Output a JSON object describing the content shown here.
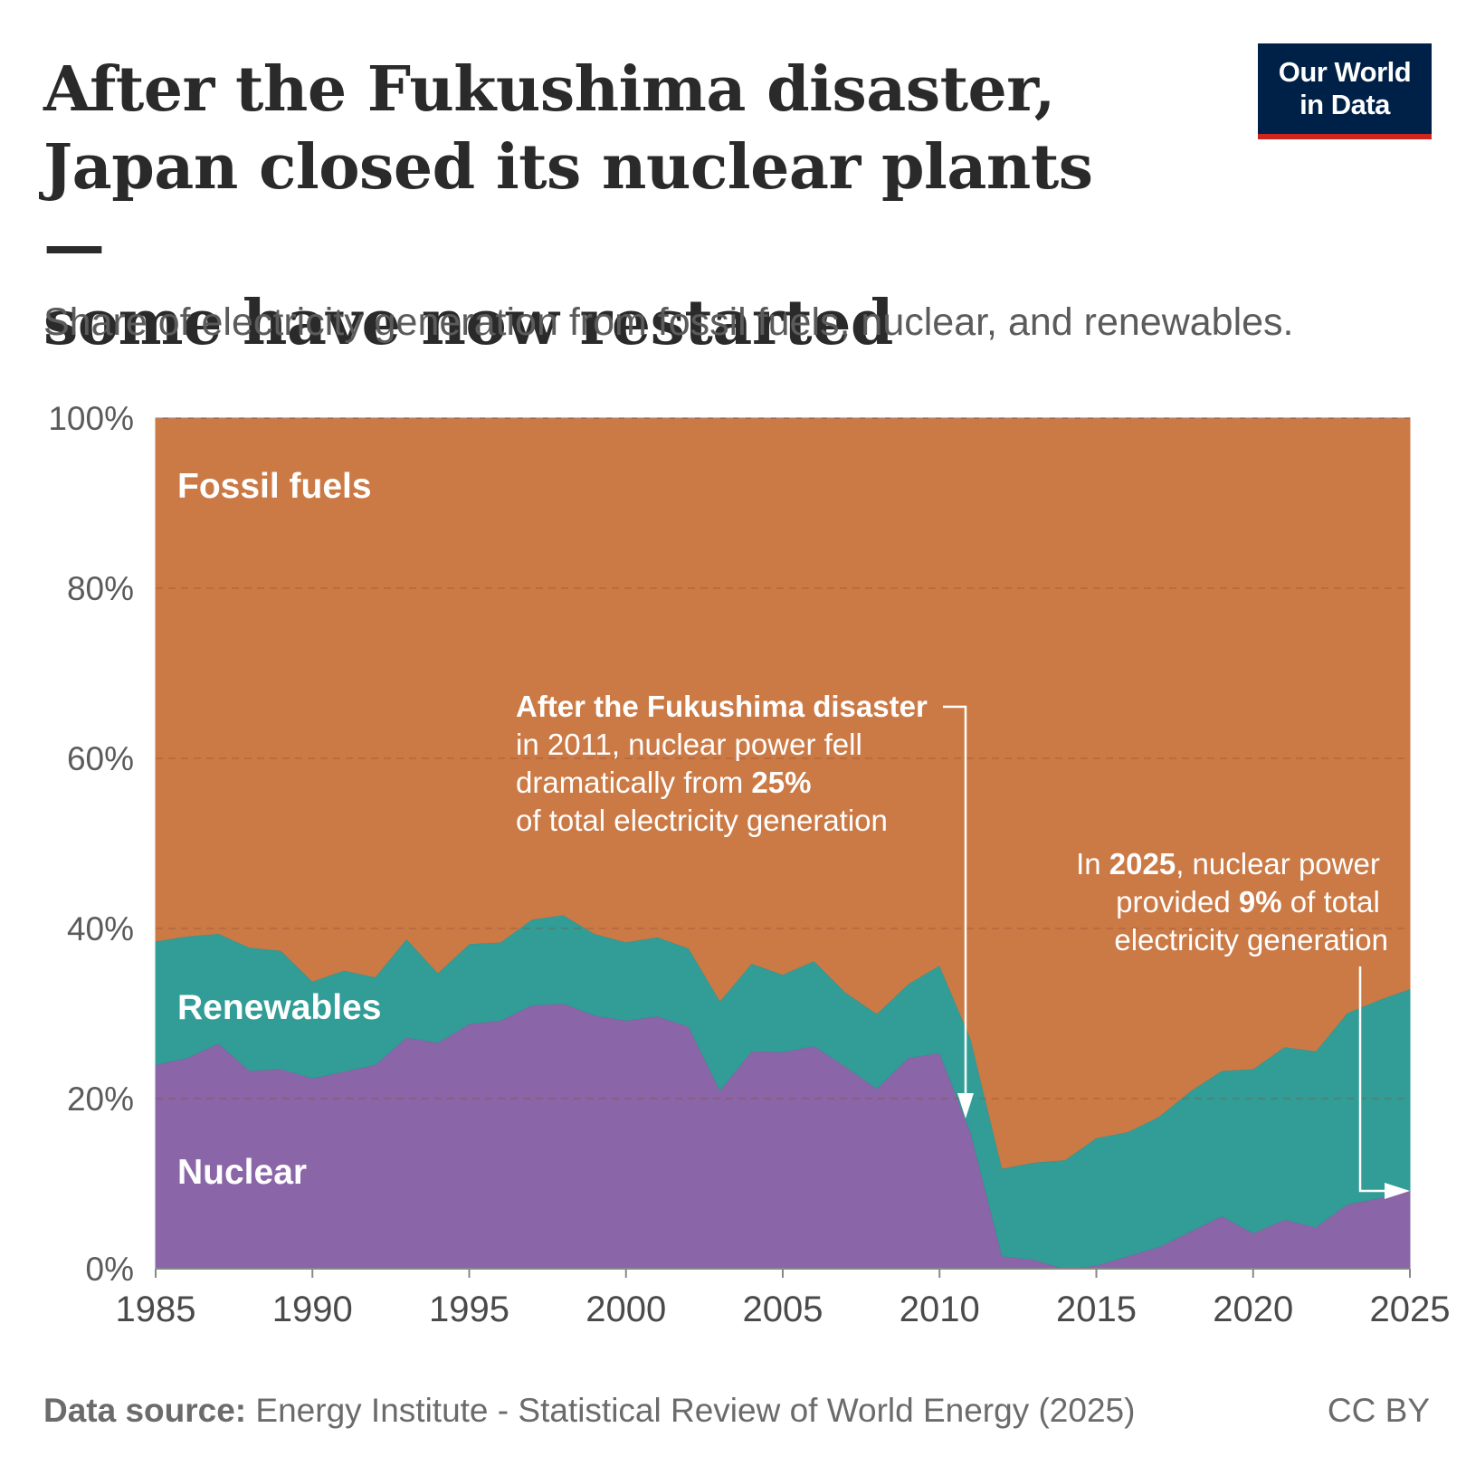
{
  "header": {
    "title_lines": [
      "After the Fukushima disaster,",
      "Japan closed its nuclear plants —",
      "some have now restarted"
    ],
    "subtitle": "Share of electricity generation from fossil fuels, nuclear, and renewables."
  },
  "logo": {
    "line1": "Our World",
    "line2": "in Data",
    "bg_color": "#002147",
    "accent_color": "#ce261e"
  },
  "footer": {
    "source_label": "Data source:",
    "source_text": "Energy Institute - Statistical Review of World Energy (2025)",
    "license": "CC BY"
  },
  "chart_data": {
    "type": "area",
    "stacked": true,
    "x": [
      1985,
      1986,
      1987,
      1988,
      1989,
      1990,
      1991,
      1992,
      1993,
      1994,
      1995,
      1996,
      1997,
      1998,
      1999,
      2000,
      2001,
      2002,
      2003,
      2004,
      2005,
      2006,
      2007,
      2008,
      2009,
      2010,
      2011,
      2012,
      2013,
      2014,
      2015,
      2016,
      2017,
      2018,
      2019,
      2020,
      2021,
      2022,
      2023,
      2024,
      2025
    ],
    "series": [
      {
        "name": "Nuclear",
        "color": "#8a66a8",
        "values": [
          24,
          24.8,
          26.5,
          23.3,
          23.5,
          22.4,
          23.2,
          24,
          27.2,
          26.6,
          28.8,
          29.2,
          31,
          31.2,
          29.8,
          29.2,
          29.7,
          28.5,
          21,
          25.6,
          25.5,
          26.2,
          23.8,
          21.2,
          24.8,
          25.4,
          16,
          1.5,
          1.1,
          0,
          0.4,
          1.5,
          2.6,
          4.4,
          6.2,
          4.2,
          5.8,
          4.9,
          7.6,
          8.3,
          9.2
        ]
      },
      {
        "name": "Renewables",
        "color": "#319d96",
        "values": [
          14.5,
          14.3,
          12.9,
          14.5,
          13.9,
          11.4,
          11.9,
          10.3,
          11.6,
          8.2,
          9.4,
          9.2,
          10.1,
          10.4,
          9.6,
          9.2,
          9.3,
          9.2,
          10.5,
          10.3,
          9.1,
          10,
          8.7,
          8.8,
          8.7,
          10.3,
          11,
          10.3,
          11.4,
          12.8,
          15,
          14.6,
          15.3,
          16.5,
          17.1,
          19.3,
          20.3,
          20.7,
          22.5,
          23.3,
          23.7
        ]
      },
      {
        "name": "Fossil fuels",
        "color": "#cb7a46",
        "values": [
          61.5,
          60.9,
          60.6,
          62.2,
          62.6,
          66.2,
          64.9,
          65.7,
          61.2,
          65.2,
          61.8,
          61.6,
          58.9,
          58.4,
          60.6,
          61.6,
          61,
          62.3,
          68.5,
          64.1,
          65.4,
          63.8,
          67.5,
          70,
          66.5,
          64.3,
          73,
          88.2,
          87.5,
          87.2,
          84.6,
          83.9,
          82.1,
          79.1,
          76.7,
          76.5,
          73.9,
          74.4,
          69.9,
          68.4,
          67.1
        ]
      }
    ],
    "series_labels": [
      "Fossil fuels",
      "Renewables",
      "Nuclear"
    ],
    "y_ticks": [
      "0%",
      "20%",
      "40%",
      "60%",
      "80%",
      "100%"
    ],
    "y_tick_values": [
      0,
      20,
      40,
      60,
      80,
      100
    ],
    "x_ticks": [
      "1985",
      "1990",
      "1995",
      "2000",
      "2005",
      "2010",
      "2015",
      "2020",
      "2025"
    ],
    "x_tick_values": [
      1985,
      1990,
      1995,
      2000,
      2005,
      2010,
      2015,
      2020,
      2025
    ],
    "xlim": [
      1985,
      2025
    ],
    "ylim": [
      0,
      100
    ],
    "grid": "horizontal dashed",
    "annotations": [
      {
        "lines": [
          [
            "After the Fukushima disaster",
            ""
          ],
          [
            "in 2011, nuclear power fell"
          ],
          [
            "dramatically from ",
            "25%"
          ],
          [
            "of total electricity generation"
          ]
        ],
        "bold_parts": [
          "After the Fukushima disaster",
          "25%"
        ],
        "target_year": 2011,
        "target_value": 16
      },
      {
        "lines": [
          [
            "In ",
            "2025",
            ", nuclear power"
          ],
          [
            "provided ",
            "9%",
            " of total"
          ],
          [
            "electricity generation"
          ]
        ],
        "bold_parts": [
          "2025",
          "9%"
        ],
        "target_year": 2025,
        "target_value": 9.2
      }
    ]
  }
}
